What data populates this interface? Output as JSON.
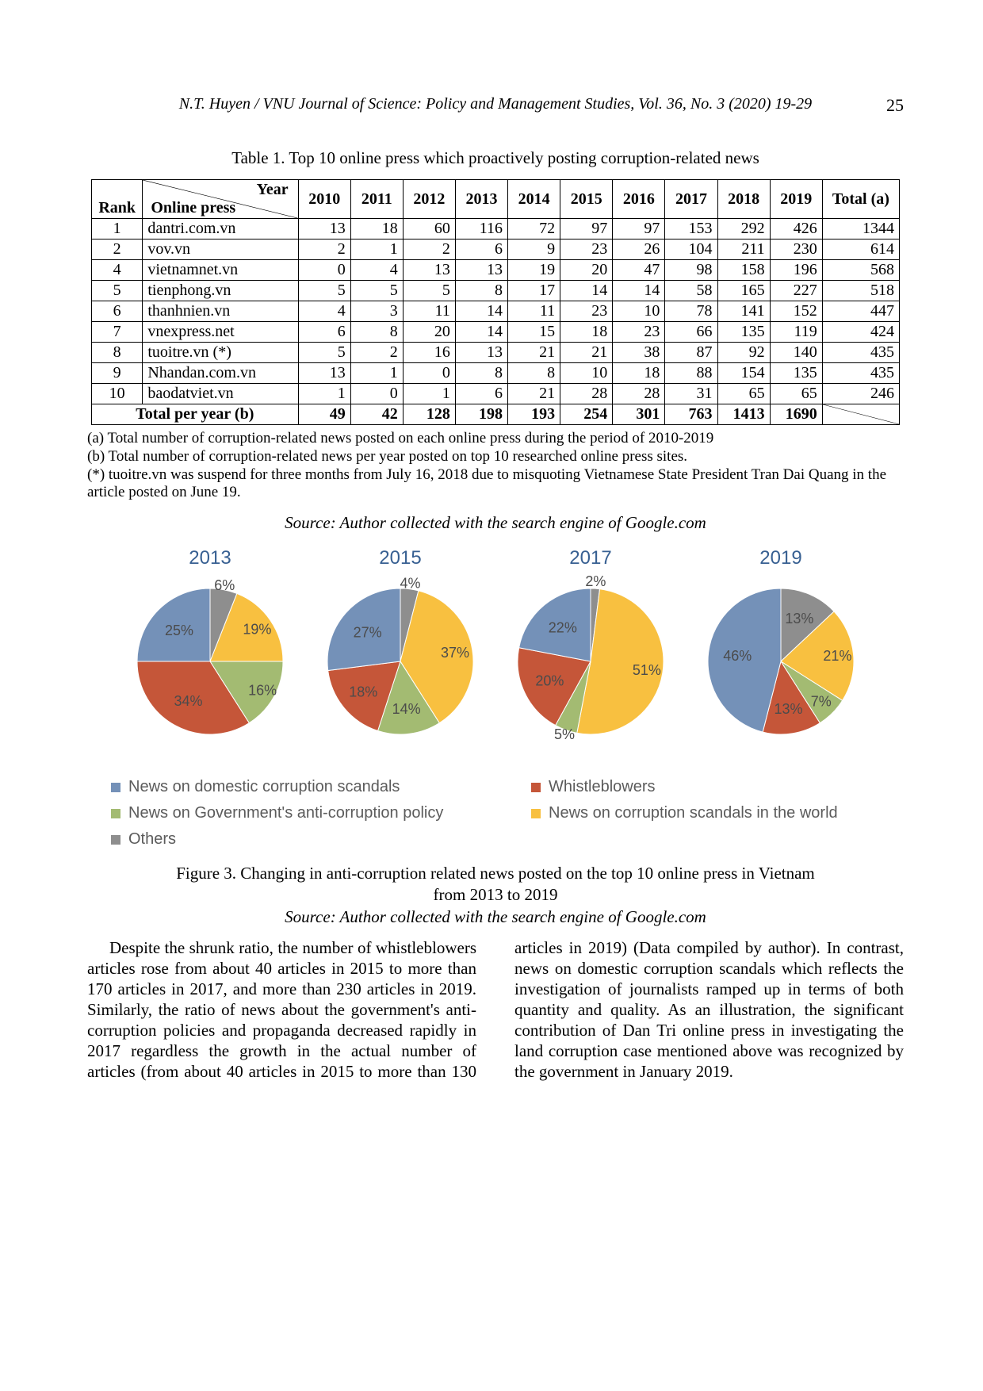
{
  "page": {
    "running_head": "N.T. Huyen / VNU Journal of Science: Policy and Management Studies, Vol. 36, No. 3 (2020) 19-29",
    "number": "25"
  },
  "table": {
    "caption": "Table 1. Top 10 online press which proactively posting corruption-related news",
    "header": {
      "rank": "Rank",
      "year_label": "Year",
      "press_label": "Online press",
      "years": [
        "2010",
        "2011",
        "2012",
        "2013",
        "2014",
        "2015",
        "2016",
        "2017",
        "2018",
        "2019"
      ],
      "total_a": "Total (a)"
    },
    "rows": [
      {
        "rank": "1",
        "name": "dantri.com.vn",
        "vals": [
          "13",
          "18",
          "60",
          "116",
          "72",
          "97",
          "97",
          "153",
          "292",
          "426"
        ],
        "total": "1344"
      },
      {
        "rank": "2",
        "name": "vov.vn",
        "vals": [
          "2",
          "1",
          "2",
          "6",
          "9",
          "23",
          "26",
          "104",
          "211",
          "230"
        ],
        "total": "614"
      },
      {
        "rank": "4",
        "name": "vietnamnet.vn",
        "vals": [
          "0",
          "4",
          "13",
          "13",
          "19",
          "20",
          "47",
          "98",
          "158",
          "196"
        ],
        "total": "568"
      },
      {
        "rank": "5",
        "name": "tienphong.vn",
        "vals": [
          "5",
          "5",
          "5",
          "8",
          "17",
          "14",
          "14",
          "58",
          "165",
          "227"
        ],
        "total": "518"
      },
      {
        "rank": "6",
        "name": "thanhnien.vn",
        "vals": [
          "4",
          "3",
          "11",
          "14",
          "11",
          "23",
          "10",
          "78",
          "141",
          "152"
        ],
        "total": "447"
      },
      {
        "rank": "7",
        "name": "vnexpress.net",
        "vals": [
          "6",
          "8",
          "20",
          "14",
          "15",
          "18",
          "23",
          "66",
          "135",
          "119"
        ],
        "total": "424"
      },
      {
        "rank": "8",
        "name": "tuoitre.vn (*)",
        "vals": [
          "5",
          "2",
          "16",
          "13",
          "21",
          "21",
          "38",
          "87",
          "92",
          "140"
        ],
        "total": "435"
      },
      {
        "rank": "9",
        "name": "Nhandan.com.vn",
        "vals": [
          "13",
          "1",
          "0",
          "8",
          "8",
          "10",
          "18",
          "88",
          "154",
          "135"
        ],
        "total": "435"
      },
      {
        "rank": "10",
        "name": "baodatviet.vn",
        "vals": [
          "1",
          "0",
          "1",
          "6",
          "21",
          "28",
          "28",
          "31",
          "65",
          "65"
        ],
        "total": "246"
      }
    ],
    "total_row": {
      "label": "Total per year (b)",
      "vals": [
        "49",
        "42",
        "128",
        "198",
        "193",
        "254",
        "301",
        "763",
        "1413",
        "1690"
      ]
    },
    "footnotes": [
      "(a) Total number of corruption-related news posted on each online press during the period of 2010-2019",
      "(b) Total number of corruption-related news per year posted on top 10 researched online press sites.",
      "(*) tuoitre.vn was suspend for three months from July 16, 2018 due to misquoting Vietnamese State President Tran Dai Quang in the article posted on June 19."
    ],
    "source_note": "Source: Author collected with the search engine of Google.com"
  },
  "pies": {
    "label_font_color": "#4b4b4b",
    "label_font_family": "Arial, sans-serif",
    "slice_colors": {
      "domestic": "#7491b8",
      "whistle": "#c55639",
      "policy": "#a3bb72",
      "world": "#f8c040",
      "others": "#8e8e8e"
    },
    "charts": [
      {
        "title": "2013",
        "start_angle": -90,
        "slices": [
          {
            "key": "others",
            "value": 6,
            "label": "6%",
            "label_r": 1.06
          },
          {
            "key": "world",
            "value": 19,
            "label": "19%",
            "label_r": 0.78
          },
          {
            "key": "policy",
            "value": 16,
            "label": "16%",
            "label_r": 0.82
          },
          {
            "key": "whistle",
            "value": 34,
            "label": "34%",
            "label_r": 0.62
          },
          {
            "key": "domestic",
            "value": 25,
            "label": "25%",
            "label_r": 0.6
          }
        ]
      },
      {
        "title": "2015",
        "start_angle": -90,
        "slices": [
          {
            "key": "others",
            "value": 4,
            "label": "4%",
            "label_r": 1.08
          },
          {
            "key": "world",
            "value": 37,
            "label": "37%",
            "label_r": 0.76
          },
          {
            "key": "policy",
            "value": 14,
            "label": "14%",
            "label_r": 0.66
          },
          {
            "key": "whistle",
            "value": 18,
            "label": "18%",
            "label_r": 0.66
          },
          {
            "key": "domestic",
            "value": 27,
            "label": "27%",
            "label_r": 0.6
          }
        ]
      },
      {
        "title": "2017",
        "start_angle": -90,
        "slices": [
          {
            "key": "others",
            "value": 2,
            "label": "2%",
            "label_r": 1.1
          },
          {
            "key": "world",
            "value": 51,
            "label": "51%",
            "label_r": 0.78
          },
          {
            "key": "policy",
            "value": 5,
            "label": "5%",
            "label_r": 1.06
          },
          {
            "key": "whistle",
            "value": 20,
            "label": "20%",
            "label_r": 0.62
          },
          {
            "key": "domestic",
            "value": 22,
            "label": "22%",
            "label_r": 0.6
          }
        ]
      },
      {
        "title": "2019",
        "start_angle": -90,
        "slices": [
          {
            "key": "others",
            "value": 13,
            "label": "13%",
            "label_r": 0.64
          },
          {
            "key": "world",
            "value": 21,
            "label": "21%",
            "label_r": 0.78
          },
          {
            "key": "policy",
            "value": 7,
            "label": "7%",
            "label_r": 0.78
          },
          {
            "key": "whistle",
            "value": 13,
            "label": "13%",
            "label_r": 0.66
          },
          {
            "key": "domestic",
            "value": 46,
            "label": "46%",
            "label_r": 0.6
          }
        ]
      }
    ],
    "legend": [
      {
        "key": "domestic",
        "label": "News on domestic corruption scandals"
      },
      {
        "key": "whistle",
        "label": "Whistleblowers"
      },
      {
        "key": "policy",
        "label": "News on Government's anti-corruption policy"
      },
      {
        "key": "world",
        "label": "News on corruption scandals in the world"
      },
      {
        "key": "others",
        "label": "Others"
      }
    ]
  },
  "figure_caption": {
    "line1": "Figure 3. Changing in anti-corruption related news posted on the top 10 online press in Vietnam",
    "line2": "from 2013 to 2019",
    "source": "Source: Author collected with the search engine of Google.com"
  },
  "body": {
    "p1": "Despite the shrunk ratio, the number of whistleblowers articles rose from about 40 articles in 2015 to more than 170 articles in 2017, and more than 230 articles in 2019. Similarly, the ratio of news about the government's anti-corruption policies and propaganda decreased rapidly in 2017 regardless the growth in the actual number of articles (from about 40 articles in 2015 to more than 130 articles in 2019) (Data compiled by author). In contrast, news on domestic corruption scandals which reflects the investigation of journalists ramped up in terms of both quantity and quality. As an illustration, the significant contribution of Dan Tri online press in investigating the land corruption case mentioned above was recognized by the government in January 2019."
  }
}
